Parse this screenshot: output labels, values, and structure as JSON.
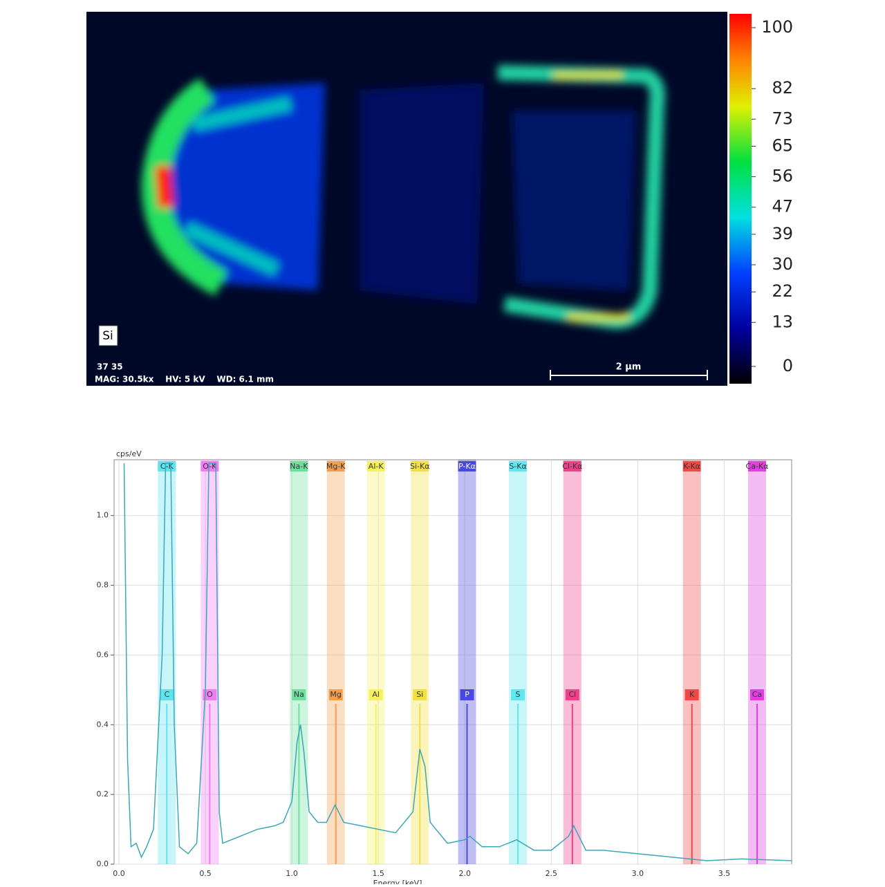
{
  "map": {
    "element": "Si",
    "info_line1": "37 35",
    "info_line2": "MAG: 30.5kx    HV: 5 kV    WD: 6.1 mm",
    "scale_bar": "2 µm",
    "colorbar": {
      "lim": [
        0,
        100
      ],
      "ticks": [
        100,
        82,
        73,
        65,
        56,
        47,
        39,
        30,
        22,
        13,
        0
      ]
    }
  },
  "chart_data": {
    "type": "line",
    "ylabel": "cps/eV",
    "xlabel": "Energy [keV]",
    "xlim": [
      0,
      3.89
    ],
    "ylim": [
      0,
      1.16
    ],
    "xticks": [
      {
        "value": 0,
        "label": "0.0"
      },
      {
        "value": 0.5,
        "label": "0.5"
      },
      {
        "value": 1,
        "label": "1.0"
      },
      {
        "value": 1.5,
        "label": "1.5"
      },
      {
        "value": 2,
        "label": "2.0"
      },
      {
        "value": 2.5,
        "label": "2.5"
      },
      {
        "value": 3,
        "label": "3.0"
      },
      {
        "value": 3.5,
        "label": "3.5"
      }
    ],
    "yticks": [
      {
        "value": 0,
        "label": "0.0"
      },
      {
        "value": 0.2,
        "label": "0.2"
      },
      {
        "value": 0.4,
        "label": "0.4"
      },
      {
        "value": 0.6,
        "label": "0.6"
      },
      {
        "value": 0.8,
        "label": "0.8"
      },
      {
        "value": 1,
        "label": "1.0"
      }
    ],
    "grid": true,
    "x": [
      0.03,
      0.05,
      0.07,
      0.1,
      0.13,
      0.16,
      0.2,
      0.25,
      0.27,
      0.3,
      0.32,
      0.35,
      0.4,
      0.45,
      0.5,
      0.52,
      0.56,
      0.58,
      0.6,
      0.7,
      0.8,
      0.9,
      0.95,
      1.0,
      1.03,
      1.05,
      1.07,
      1.1,
      1.15,
      1.2,
      1.25,
      1.3,
      1.4,
      1.5,
      1.6,
      1.7,
      1.74,
      1.77,
      1.8,
      1.9,
      2.0,
      2.03,
      2.1,
      2.2,
      2.3,
      2.4,
      2.5,
      2.6,
      2.63,
      2.7,
      2.8,
      3.0,
      3.2,
      3.4,
      3.6,
      3.89
    ],
    "series": [
      {
        "color": "#3aa6b8",
        "values": [
          1.15,
          0.3,
          0.05,
          0.06,
          0.02,
          0.05,
          0.1,
          0.6,
          1.15,
          1.15,
          0.4,
          0.05,
          0.03,
          0.06,
          0.5,
          1.15,
          1.15,
          0.15,
          0.06,
          0.08,
          0.1,
          0.11,
          0.12,
          0.18,
          0.35,
          0.4,
          0.32,
          0.15,
          0.12,
          0.12,
          0.17,
          0.12,
          0.11,
          0.1,
          0.09,
          0.15,
          0.33,
          0.28,
          0.12,
          0.06,
          0.07,
          0.08,
          0.05,
          0.05,
          0.07,
          0.04,
          0.04,
          0.08,
          0.11,
          0.04,
          0.04,
          0.03,
          0.02,
          0.01,
          0.015,
          0.01
        ]
      }
    ],
    "elements": [
      {
        "line": "C-K",
        "symbol": "C",
        "energy": 0.277,
        "color": "#5fe3ef"
      },
      {
        "line": "O-K",
        "symbol": "O",
        "energy": 0.525,
        "color": "#f07cf0"
      },
      {
        "line": "Na-K",
        "symbol": "Na",
        "energy": 1.041,
        "color": "#6de0a0"
      },
      {
        "line": "Mg-K",
        "symbol": "Mg",
        "energy": 1.254,
        "color": "#f0a050"
      },
      {
        "line": "Al-K",
        "symbol": "Al",
        "energy": 1.486,
        "color": "#f7f060"
      },
      {
        "line": "Si-Kα",
        "symbol": "Si",
        "energy": 1.74,
        "color": "#f0e040"
      },
      {
        "line": "P-Kα",
        "symbol": "P",
        "energy": 2.013,
        "color": "#4848e0"
      },
      {
        "line": "S-Kα",
        "symbol": "S",
        "energy": 2.307,
        "color": "#60e8f0"
      },
      {
        "line": "Cl-Kα",
        "symbol": "Cl",
        "energy": 2.622,
        "color": "#f0408a"
      },
      {
        "line": "K-Kα",
        "symbol": "K",
        "energy": 3.313,
        "color": "#f04848"
      },
      {
        "line": "Ca-Kα",
        "symbol": "Ca",
        "energy": 3.69,
        "color": "#e040e0"
      }
    ]
  }
}
